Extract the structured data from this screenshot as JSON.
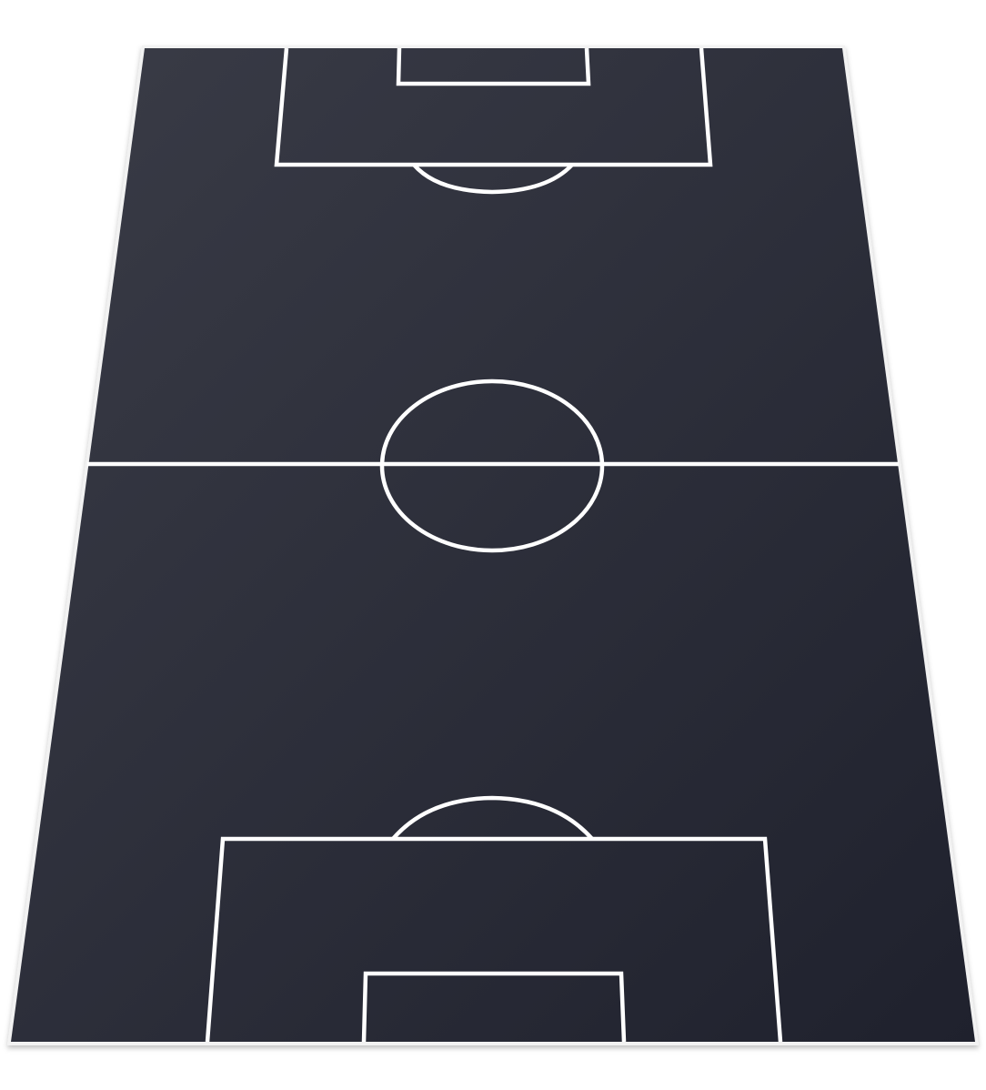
{
  "pitch": {
    "view": "perspective",
    "colors": {
      "surface_top": "#3a3c47",
      "surface_bottom": "#1f212d",
      "lines": "#ffffff",
      "background": "#ffffff"
    },
    "markings": [
      "touchline",
      "halfway-line",
      "center-circle",
      "top-penalty-box",
      "top-goal-box",
      "top-penalty-arc",
      "bottom-penalty-box",
      "bottom-goal-box",
      "bottom-penalty-arc"
    ]
  }
}
